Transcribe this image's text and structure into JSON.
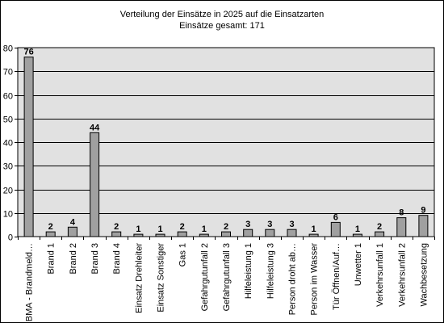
{
  "chart_data": {
    "type": "bar",
    "title": "Verteilung der Einsätze in 2025 auf die Einsatzarten",
    "subtitle": "Einsätze gesamt: 171",
    "xlabel": "",
    "ylabel": "",
    "ylim": [
      0,
      80
    ],
    "yticks": [
      0,
      10,
      20,
      30,
      40,
      50,
      60,
      70,
      80
    ],
    "grid": true,
    "legend": "none",
    "categories": [
      "BMA - Brandmeld…",
      "Brand 1",
      "Brand 2",
      "Brand 3",
      "Brand 4",
      "Einsatz Drehleiter",
      "Einsatz Sonstiger",
      "Gas 1",
      "Gefahrgutunfall 2",
      "Gefahrgutunfall 3",
      "Hilfeleistung 1",
      "Hilfeleistung 3",
      "Person droht ab…",
      "Person im Wasser",
      "Tür Öffnen/Auf…",
      "Unwetter 1",
      "Verkehrsunfall 1",
      "Verkehrsunfall 2",
      "Wachbesetzung"
    ],
    "values": [
      76,
      2,
      4,
      44,
      2,
      1,
      1,
      2,
      1,
      2,
      3,
      3,
      3,
      1,
      6,
      1,
      2,
      8,
      9
    ],
    "colors": {
      "plot_background": "#e1e1e1",
      "bar_fill": "#a0a0a0",
      "bar_stroke": "#000000",
      "gridline": "#000000"
    }
  }
}
